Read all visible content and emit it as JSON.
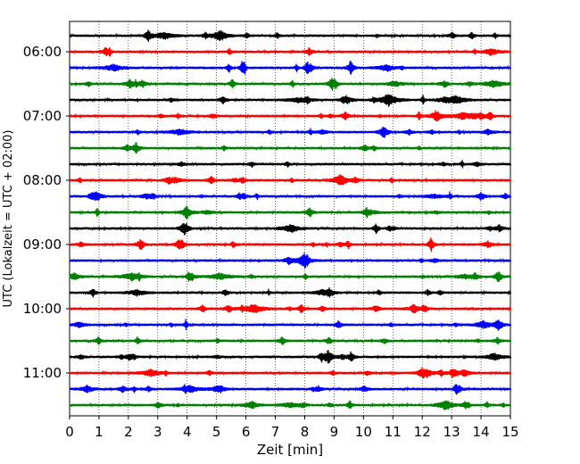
{
  "chart_data": {
    "type": "line",
    "title": "",
    "xlabel": "Zeit  [min]",
    "ylabel": "UTC (Lokalzeit = UTC + 02:00)",
    "xlim": [
      0,
      15
    ],
    "x_ticks": [
      "0",
      "1",
      "2",
      "3",
      "4",
      "5",
      "6",
      "7",
      "8",
      "9",
      "10",
      "11",
      "12",
      "13",
      "14",
      "15"
    ],
    "y_ticks": [
      "06:00",
      "07:00",
      "08:00",
      "09:00",
      "10:00",
      "11:00"
    ],
    "grid": "vertical dotted at each minute",
    "legend": "none",
    "trace_count": 24,
    "trace_start": "05:45",
    "trace_interval_min": 15,
    "trace_colors": [
      "#000000",
      "#ff0000",
      "#0000ff",
      "#008000"
    ],
    "series": [
      {
        "start": "05:45",
        "color": "#000000"
      },
      {
        "start": "06:00",
        "color": "#ff0000"
      },
      {
        "start": "06:15",
        "color": "#0000ff"
      },
      {
        "start": "06:30",
        "color": "#008000"
      },
      {
        "start": "06:45",
        "color": "#000000"
      },
      {
        "start": "07:00",
        "color": "#ff0000"
      },
      {
        "start": "07:15",
        "color": "#0000ff"
      },
      {
        "start": "07:30",
        "color": "#008000"
      },
      {
        "start": "07:45",
        "color": "#000000"
      },
      {
        "start": "08:00",
        "color": "#ff0000"
      },
      {
        "start": "08:15",
        "color": "#0000ff"
      },
      {
        "start": "08:30",
        "color": "#008000"
      },
      {
        "start": "08:45",
        "color": "#000000"
      },
      {
        "start": "09:00",
        "color": "#ff0000"
      },
      {
        "start": "09:15",
        "color": "#0000ff"
      },
      {
        "start": "09:30",
        "color": "#008000"
      },
      {
        "start": "09:45",
        "color": "#000000"
      },
      {
        "start": "10:00",
        "color": "#ff0000"
      },
      {
        "start": "10:15",
        "color": "#0000ff"
      },
      {
        "start": "10:30",
        "color": "#008000"
      },
      {
        "start": "10:45",
        "color": "#000000"
      },
      {
        "start": "11:00",
        "color": "#ff0000"
      },
      {
        "start": "11:15",
        "color": "#0000ff"
      },
      {
        "start": "11:30",
        "color": "#008000"
      }
    ]
  }
}
